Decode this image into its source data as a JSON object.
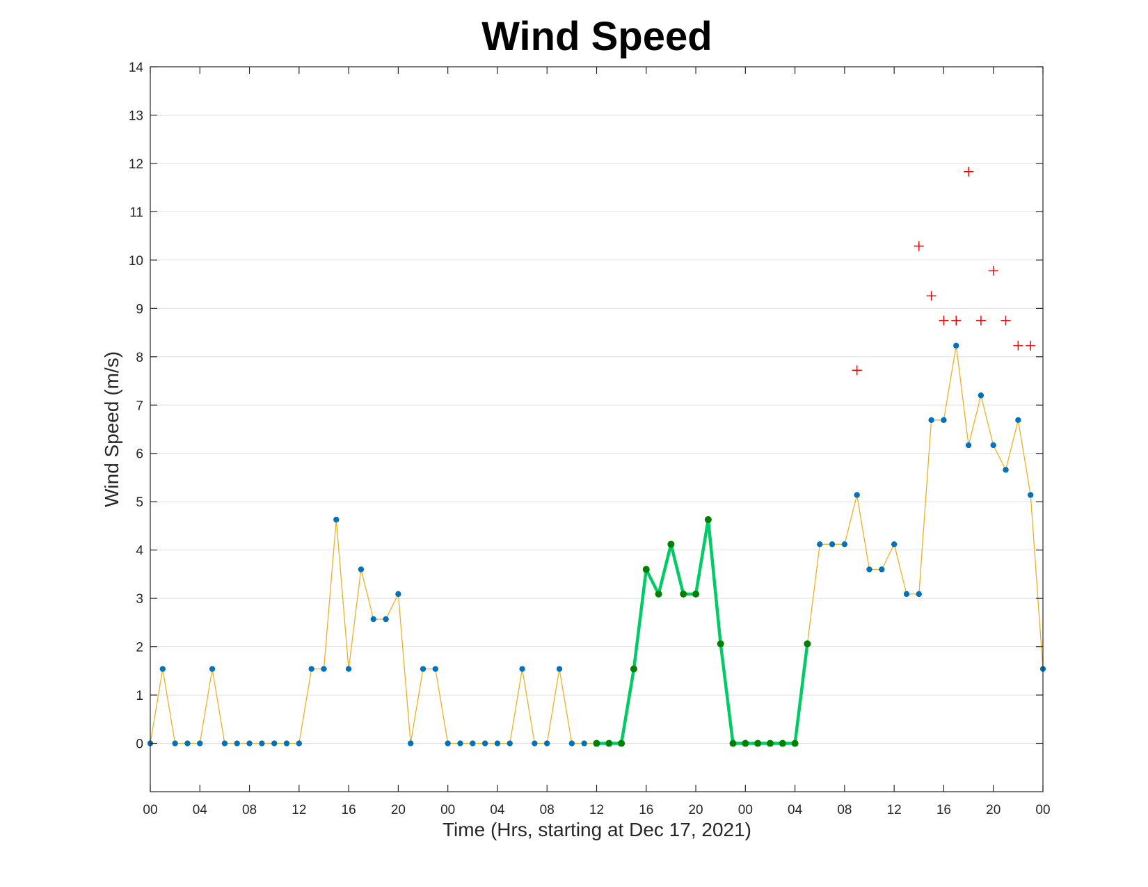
{
  "chart_data": {
    "type": "line",
    "title": "Wind Speed",
    "xlabel": "Time (Hrs, starting at Dec 17, 2021)",
    "ylabel": "Wind Speed (m/s)",
    "xlim": [
      0,
      72
    ],
    "ylim": [
      -1,
      14
    ],
    "yticks": [
      0,
      1,
      2,
      3,
      4,
      5,
      6,
      7,
      8,
      9,
      10,
      11,
      12,
      13,
      14
    ],
    "xticks": [
      0,
      4,
      8,
      12,
      16,
      20,
      24,
      28,
      32,
      36,
      40,
      44,
      48,
      52,
      56,
      60,
      64,
      68,
      72
    ],
    "xtick_labels": [
      "00",
      "04",
      "08",
      "12",
      "16",
      "20",
      "00",
      "04",
      "08",
      "12",
      "16",
      "20",
      "00",
      "04",
      "08",
      "12",
      "16",
      "20",
      "00"
    ],
    "grid": "horizontal",
    "colors": {
      "line": "#EDB120",
      "marker": "#0072BD",
      "highlight_line": "#00CC66",
      "highlight_marker": "#008000",
      "gust": "#FF0000"
    },
    "series": [
      {
        "x": [
          0,
          1,
          2,
          3,
          4,
          5,
          6,
          7,
          8,
          9,
          10,
          11,
          12,
          13,
          14,
          15,
          16,
          17,
          18,
          19,
          20,
          21,
          22,
          23,
          24,
          25,
          26,
          27,
          28,
          29,
          30,
          31,
          32,
          33,
          34,
          35,
          36,
          37,
          38,
          39,
          40,
          41,
          42,
          43,
          44,
          45,
          46,
          47,
          48,
          49,
          50,
          51,
          52,
          53,
          54,
          55,
          56,
          57,
          58,
          59,
          60,
          61,
          62,
          63,
          64,
          65,
          66,
          67,
          68,
          69,
          70,
          71,
          72
        ],
        "values": [
          0,
          1.54,
          0,
          0,
          0,
          1.54,
          0,
          0,
          0,
          0,
          0,
          0,
          0,
          1.54,
          1.54,
          4.63,
          1.54,
          3.6,
          2.57,
          2.57,
          3.09,
          0,
          1.54,
          1.54,
          0,
          0,
          0,
          0,
          0,
          0,
          1.54,
          0,
          0,
          1.54,
          0,
          0,
          0,
          0,
          0,
          1.54,
          3.6,
          3.09,
          4.12,
          3.09,
          3.09,
          4.63,
          2.06,
          0,
          0,
          0,
          0,
          0,
          0,
          2.06,
          4.12,
          4.12,
          4.12,
          5.14,
          3.6,
          3.6,
          4.12,
          3.09,
          3.09,
          6.69,
          6.69,
          8.23,
          6.17,
          7.2,
          6.17,
          5.66,
          6.69,
          5.14,
          1.54
        ]
      },
      {
        "x": [
          36,
          37,
          38,
          39,
          40,
          41,
          42,
          43,
          44,
          45,
          46,
          47,
          48,
          49,
          50,
          51,
          52,
          53
        ],
        "values": [
          0,
          0,
          0,
          1.54,
          3.6,
          3.09,
          4.12,
          3.09,
          3.09,
          4.63,
          2.06,
          0,
          0,
          0,
          0,
          0,
          0,
          2.06
        ]
      },
      {
        "x": [
          57,
          62,
          63,
          64,
          65,
          66,
          67,
          68,
          69,
          70,
          71
        ],
        "values": [
          7.72,
          10.29,
          9.26,
          8.75,
          8.75,
          11.83,
          8.75,
          9.78,
          8.75,
          8.23,
          8.23
        ]
      }
    ]
  }
}
